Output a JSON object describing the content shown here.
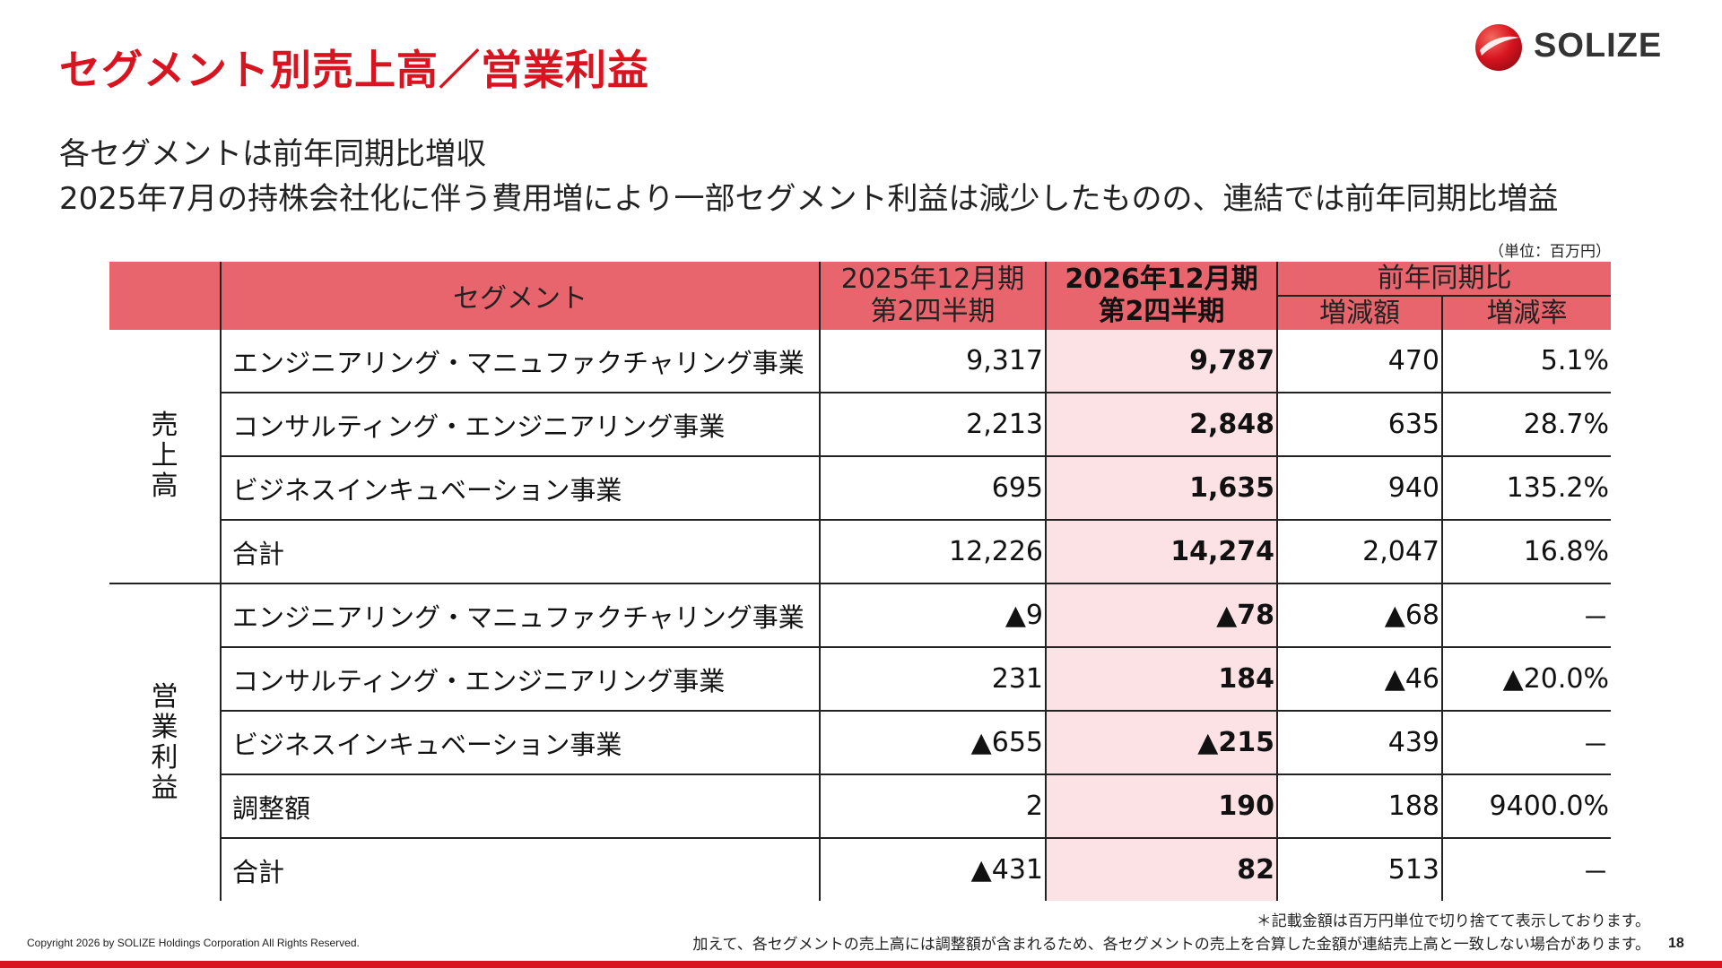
{
  "header": {
    "title": "セグメント別売上高／営業利益",
    "logo_text": "SOLIZE"
  },
  "subtitle": {
    "line1": "各セグメントは前年同期比増収",
    "line2": "2025年7月の持株会社化に伴う費用増により一部セグメント利益は減少したものの、連結では前年同期比増益"
  },
  "unit_note": "（単位：百万円）",
  "table": {
    "headers": {
      "segment": "セグメント",
      "prev_line1": "2025年12月期",
      "prev_line2": "第2四半期",
      "cur_line1": "2026年12月期",
      "cur_line2": "第2四半期",
      "yoy": "前年同期比",
      "diff": "増減額",
      "rate": "増減率"
    },
    "groups": [
      {
        "label": "売上高",
        "rows": [
          {
            "name": "エンジニアリング・マニュファクチャリング事業",
            "prev": "9,317",
            "cur": "9,787",
            "diff": "470",
            "rate": "5.1%"
          },
          {
            "name": "コンサルティング・エンジニアリング事業",
            "prev": "2,213",
            "cur": "2,848",
            "diff": "635",
            "rate": "28.7%"
          },
          {
            "name": "ビジネスインキュベーション事業",
            "prev": "695",
            "cur": "1,635",
            "diff": "940",
            "rate": "135.2%"
          },
          {
            "name": "合計",
            "prev": "12,226",
            "cur": "14,274",
            "diff": "2,047",
            "rate": "16.8%"
          }
        ]
      },
      {
        "label": "営業利益",
        "rows": [
          {
            "name": "エンジニアリング・マニュファクチャリング事業",
            "prev": "▲9",
            "cur": "▲78",
            "diff": "▲68",
            "rate": "－"
          },
          {
            "name": "コンサルティング・エンジニアリング事業",
            "prev": "231",
            "cur": "184",
            "diff": "▲46",
            "rate": "▲20.0%"
          },
          {
            "name": "ビジネスインキュベーション事業",
            "prev": "▲655",
            "cur": "▲215",
            "diff": "439",
            "rate": "－"
          },
          {
            "name": "調整額",
            "prev": "2",
            "cur": "190",
            "diff": "188",
            "rate": "9400.0%"
          },
          {
            "name": "合計",
            "prev": "▲431",
            "cur": "82",
            "diff": "513",
            "rate": "－"
          }
        ]
      }
    ]
  },
  "footer": {
    "copyright": "Copyright 2026 by SOLIZE Holdings Corporation All Rights Reserved.",
    "note1": "＊記載金額は百万円単位で切り捨てて表示しております。",
    "note2": "加えて、各セグメントの売上高には調整額が含まれるため、各セグメントの売上を合算した金額が連結売上高と一致しない場合があります。",
    "page_number": "18"
  },
  "colors": {
    "brand_red": "#d7141f",
    "header_fill": "#e8656e",
    "current_period_fill": "#fde2e5"
  }
}
